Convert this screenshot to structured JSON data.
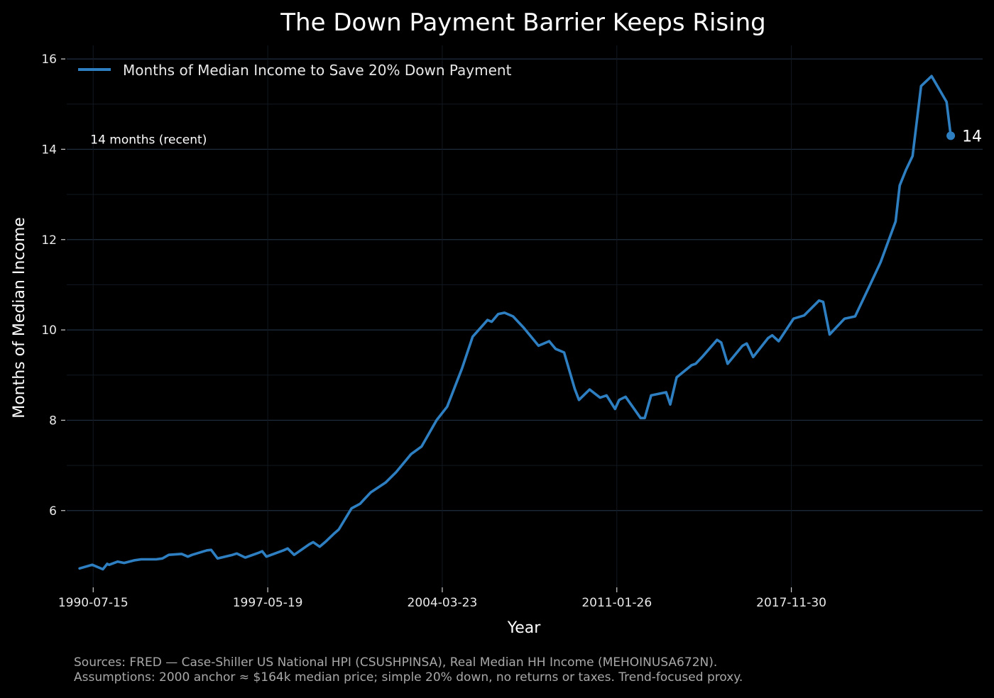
{
  "chart_data": {
    "type": "line",
    "title": "The Down Payment Barrier Keeps Rising",
    "xlabel": "Year",
    "ylabel": "Months of Median Income",
    "x_range": [
      "1989-07-01",
      "2025-06-01"
    ],
    "ylim": [
      4.3,
      16.3
    ],
    "y_ticks": [
      6,
      8,
      10,
      12,
      14,
      16
    ],
    "x_ticks": [
      "1990-07-15",
      "1997-05-19",
      "2004-03-23",
      "2011-01-26",
      "2017-11-30"
    ],
    "grid": true,
    "legend": "top-left",
    "line_color": "#2e7fc1",
    "reference_line": {
      "y": 14,
      "label": "14 months (recent)"
    },
    "end_label": "14",
    "series": [
      {
        "name": "Months of Median Income to Save 20% Down Payment",
        "x": [
          "1990-01",
          "1990-07",
          "1990-12",
          "1991-02",
          "1991-03",
          "1991-07",
          "1991-10",
          "1992-03",
          "1992-06",
          "1993-01",
          "1993-04",
          "1993-07",
          "1994-01",
          "1994-04",
          "1994-06",
          "1995-01",
          "1995-03",
          "1995-06",
          "1996-01",
          "1996-03",
          "1996-07",
          "1997-01",
          "1997-03",
          "1997-05",
          "1998-01",
          "1998-03",
          "1998-06",
          "1999-01",
          "1999-03",
          "1999-06",
          "1999-09",
          "2000-01",
          "2000-03",
          "2000-09",
          "2001-01",
          "2001-03",
          "2001-06",
          "2002-01",
          "2002-06",
          "2003-01",
          "2003-06",
          "2004-01",
          "2004-06",
          "2005-01",
          "2005-06",
          "2006-01",
          "2006-03",
          "2006-06",
          "2006-09",
          "2007-01",
          "2007-06",
          "2008-01",
          "2008-06",
          "2008-09",
          "2009-01",
          "2009-06",
          "2009-08",
          "2010-01",
          "2010-06",
          "2010-09",
          "2011-01",
          "2011-03",
          "2011-06",
          "2012-01",
          "2012-03",
          "2012-06",
          "2013-01",
          "2013-03",
          "2013-06",
          "2014-01",
          "2014-03",
          "2014-06",
          "2015-01",
          "2015-03",
          "2015-06",
          "2016-01",
          "2016-03",
          "2016-06",
          "2017-01",
          "2017-03",
          "2017-06",
          "2018-01",
          "2018-06",
          "2019-01",
          "2019-03",
          "2019-06",
          "2020-01",
          "2020-06",
          "2021-01",
          "2021-06",
          "2022-01",
          "2022-03",
          "2022-06",
          "2022-09",
          "2023-01",
          "2023-06",
          "2024-01",
          "2024-03"
        ],
        "y": [
          4.72,
          4.8,
          4.7,
          4.82,
          4.8,
          4.87,
          4.84,
          4.9,
          4.92,
          4.92,
          4.94,
          5.02,
          5.04,
          4.98,
          5.02,
          5.12,
          5.13,
          4.94,
          5.02,
          5.05,
          4.96,
          5.06,
          5.1,
          4.98,
          5.12,
          5.16,
          5.02,
          5.25,
          5.3,
          5.2,
          5.32,
          5.5,
          5.58,
          6.05,
          6.15,
          6.25,
          6.4,
          6.62,
          6.85,
          7.25,
          7.42,
          8.0,
          8.3,
          9.15,
          9.85,
          10.22,
          10.18,
          10.35,
          10.38,
          10.3,
          10.05,
          9.65,
          9.75,
          9.58,
          9.5,
          8.7,
          8.45,
          8.68,
          8.5,
          8.55,
          8.25,
          8.45,
          8.52,
          8.05,
          8.05,
          8.55,
          8.62,
          8.35,
          8.95,
          9.22,
          9.25,
          9.4,
          9.78,
          9.72,
          9.25,
          9.65,
          9.7,
          9.4,
          9.82,
          9.88,
          9.75,
          10.25,
          10.32,
          10.65,
          10.62,
          9.9,
          10.25,
          10.3,
          11.0,
          11.5,
          12.4,
          13.2,
          13.55,
          13.85,
          15.4,
          15.62,
          15.05,
          14.3
        ]
      }
    ]
  },
  "footer": {
    "line1": "Sources: FRED — Case-Shiller US National HPI (CSUSHPINSA), Real Median HH Income (MEHOINUSA672N).",
    "line2": "Assumptions: 2000 anchor ≈ $164k median price; simple 20% down, no returns or taxes. Trend-focused proxy."
  }
}
